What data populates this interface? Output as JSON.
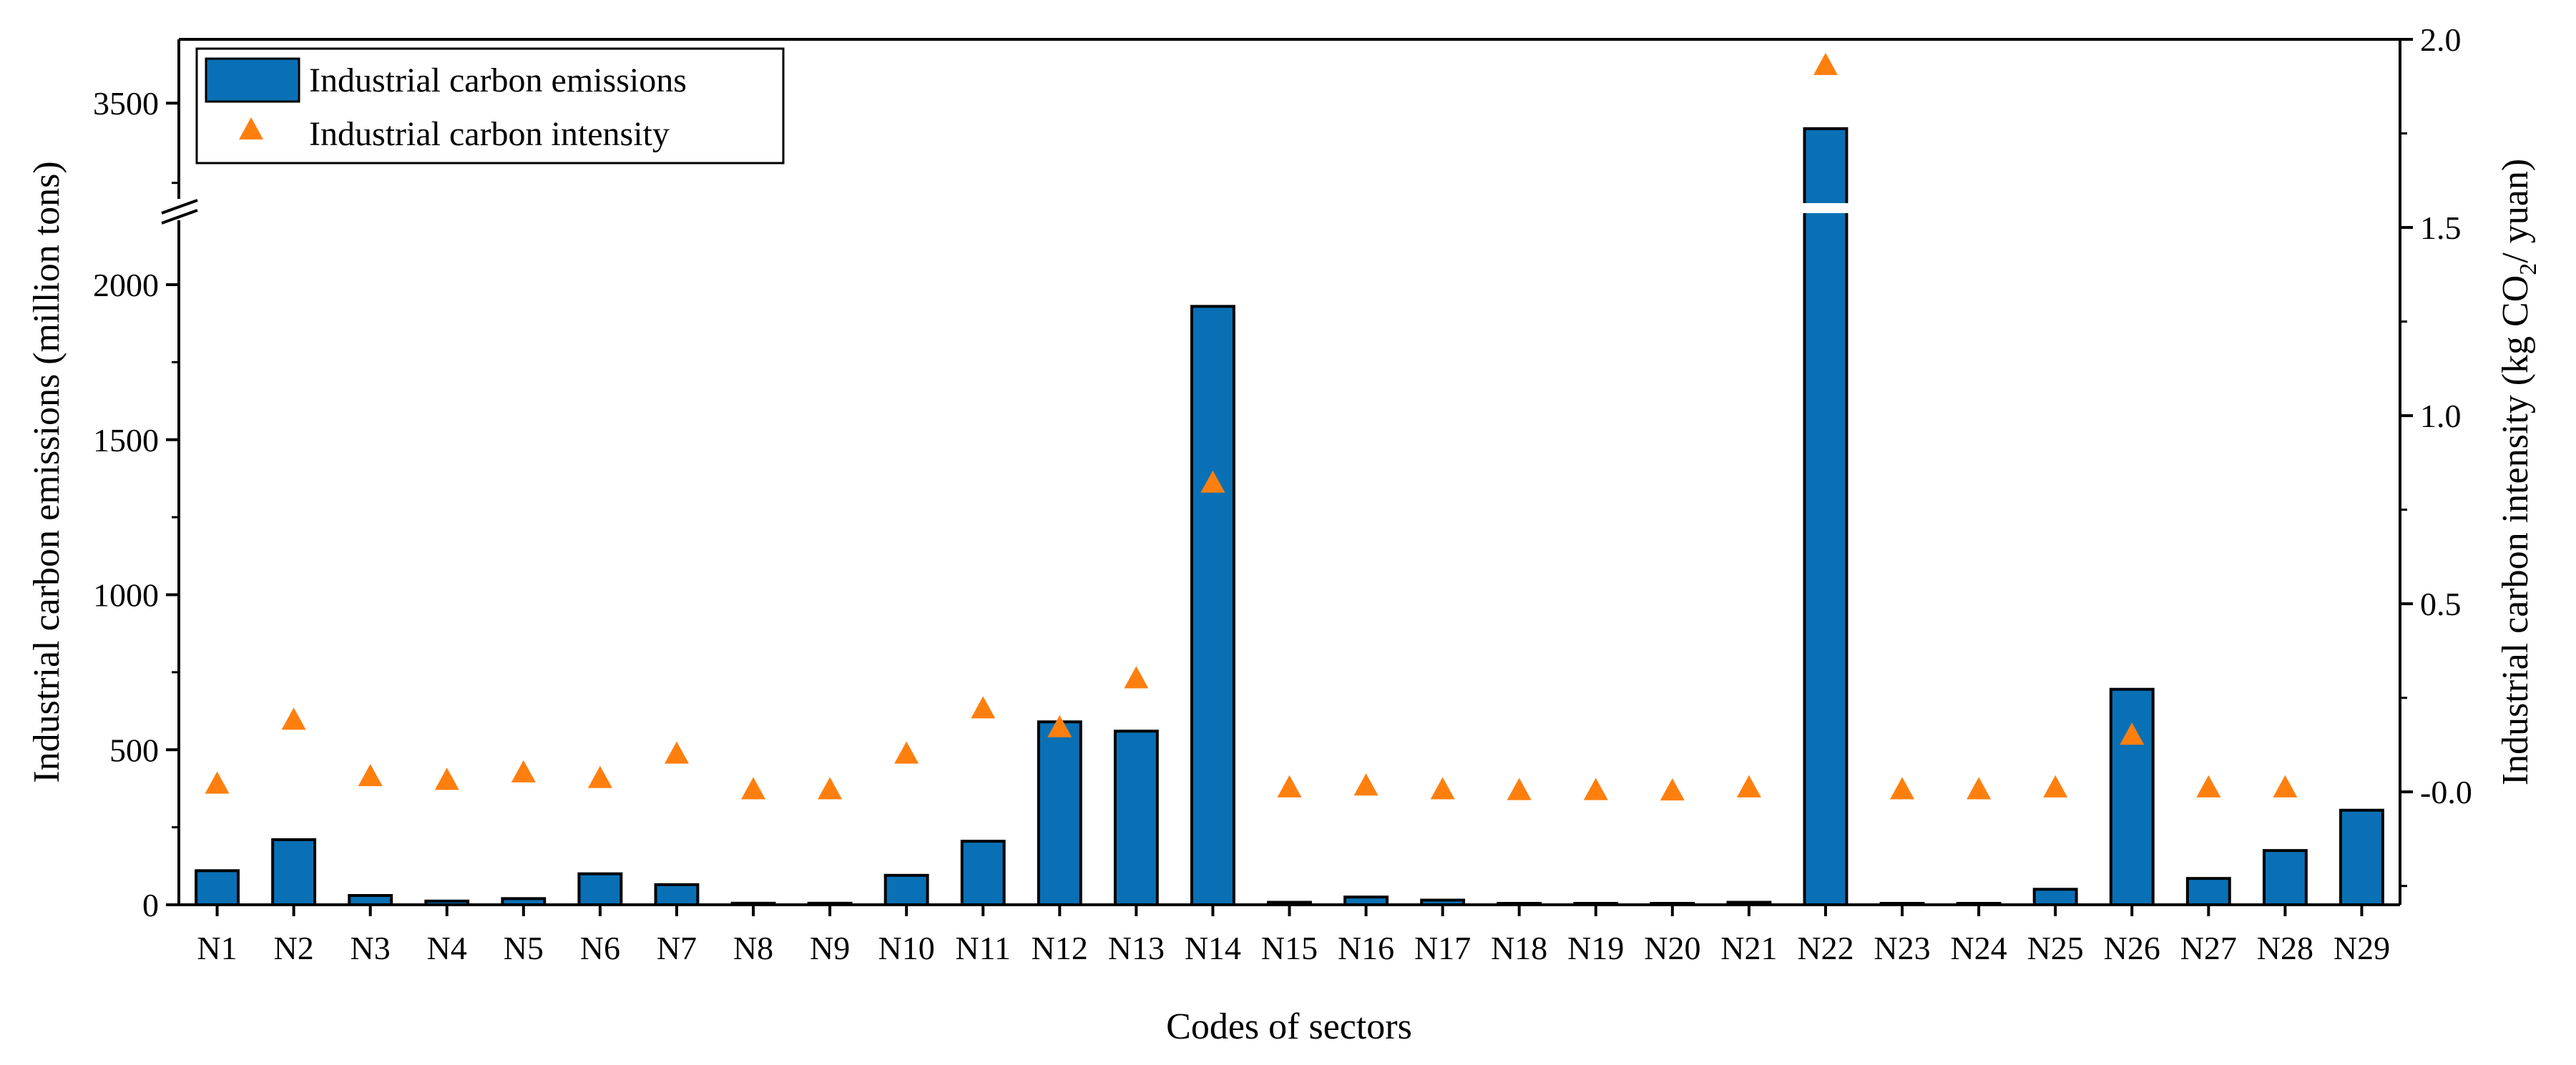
{
  "chart_data": {
    "type": "bar",
    "xlabel": "Codes of sectors",
    "ylabel_left": "Industrial carbon emissions (million tons)",
    "ylabel_right_prefix": "Industrial carbon intensity (kg CO",
    "ylabel_right_subscript": "2",
    "ylabel_right_suffix": "/ yuan)",
    "categories": [
      "N1",
      "N2",
      "N3",
      "N4",
      "N5",
      "N6",
      "N7",
      "N8",
      "N9",
      "N10",
      "N11",
      "N12",
      "N13",
      "N14",
      "N15",
      "N16",
      "N17",
      "N18",
      "N19",
      "N20",
      "N21",
      "N22",
      "N23",
      "N24",
      "N25",
      "N26",
      "N27",
      "N28",
      "N29"
    ],
    "left_axis": {
      "lower_range": [
        0,
        2000
      ],
      "upper_range": [
        3200,
        3700
      ],
      "lower_ticks": [
        0,
        500,
        1000,
        1500,
        2000
      ],
      "upper_ticks": [
        3500
      ],
      "axis_break": true
    },
    "right_axis": {
      "range": [
        -0.3,
        2.0
      ],
      "ticks": [
        "-0.0",
        "0.5",
        "1.0",
        "1.5",
        "2.0"
      ]
    },
    "series": [
      {
        "name": "Industrial carbon emissions",
        "type": "bar",
        "axis": "left",
        "color": "#0a70b5",
        "values": [
          110,
          210,
          30,
          12,
          20,
          100,
          65,
          5,
          5,
          95,
          205,
          590,
          560,
          1930,
          8,
          25,
          15,
          3,
          3,
          2,
          8,
          3420,
          2,
          2,
          50,
          695,
          85,
          175,
          305
        ]
      },
      {
        "name": "Industrial carbon intensity",
        "type": "scatter",
        "marker": "triangle",
        "axis": "right",
        "color": "#ff7f0e",
        "values": [
          0.02,
          0.19,
          0.04,
          0.03,
          0.05,
          0.035,
          0.1,
          0.005,
          0.005,
          0.1,
          0.22,
          0.17,
          0.3,
          0.82,
          0.01,
          0.015,
          0.005,
          0.003,
          0.003,
          0.002,
          0.01,
          1.93,
          0.005,
          0.005,
          0.01,
          0.15,
          0.01,
          0.01,
          null
        ]
      }
    ],
    "legend_position": "top-left",
    "grid": false
  }
}
